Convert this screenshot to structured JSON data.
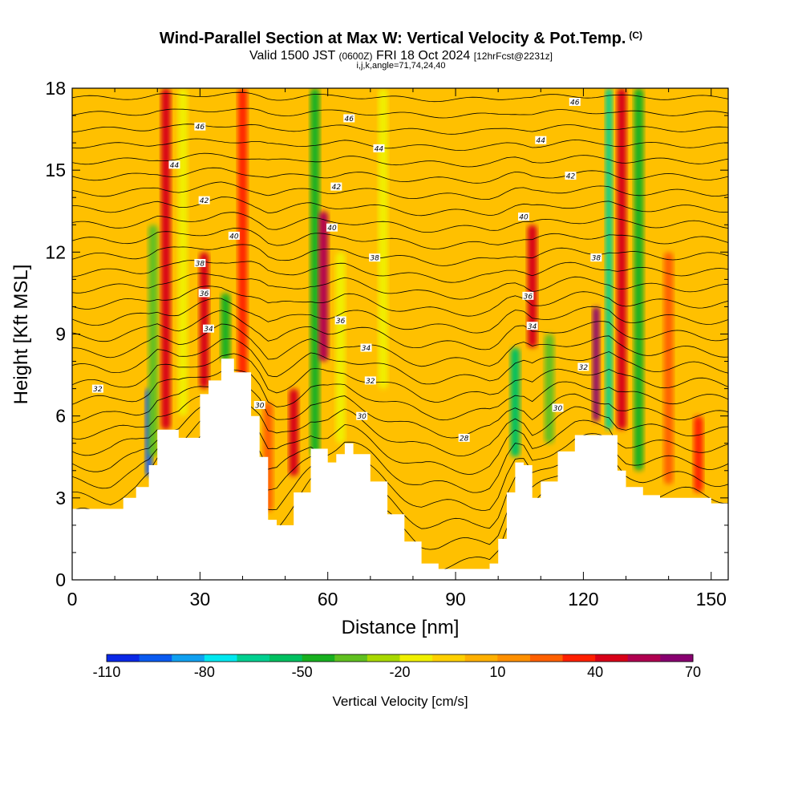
{
  "header": {
    "title": "Wind-Parallel Section at Max W: Vertical Velocity & Pot.Temp.",
    "title_mark": "(C)",
    "valid_prefix": "Valid 1500 JST",
    "valid_utc": "(0600Z)",
    "valid_date": "FRI 18 Oct 2024",
    "forecast": "[12hrFcst@2231z]",
    "params": "i,j,k,angle=71,74,24,40"
  },
  "colorbar": {
    "title": "Vertical Velocity [cm/s]",
    "tick_labels": [
      "-110",
      "-80",
      "-50",
      "-20",
      "10",
      "40",
      "70"
    ],
    "tick_values": [
      -110,
      -80,
      -50,
      -20,
      10,
      40,
      70
    ],
    "levels": [
      -110,
      -100,
      -90,
      -80,
      -70,
      -60,
      -50,
      -40,
      -30,
      -20,
      -10,
      0,
      10,
      20,
      30,
      40,
      50,
      60,
      70
    ],
    "colors": [
      "#0a28e6",
      "#0a5af0",
      "#10a0f0",
      "#00e8f0",
      "#00d090",
      "#00c060",
      "#18b020",
      "#60c020",
      "#a8d800",
      "#f0f000",
      "#ffd000",
      "#ffb000",
      "#ff9000",
      "#ff6000",
      "#ff2000",
      "#d80018",
      "#b00050",
      "#880070"
    ]
  },
  "chart_data": {
    "type": "heatmap",
    "title": "Wind-Parallel Section at Max W: Vertical Velocity & Pot.Temp.",
    "xlabel": "Distance [nm]",
    "ylabel": "Height [Kft MSL]",
    "xlim": [
      0,
      154
    ],
    "ylim": [
      0,
      18
    ],
    "x_ticks": [
      0,
      30,
      60,
      90,
      120,
      150
    ],
    "y_ticks": [
      0,
      3,
      6,
      9,
      12,
      15,
      18
    ],
    "x_tick_labels": [
      "0",
      "30",
      "60",
      "90",
      "120",
      "150"
    ],
    "y_tick_labels": [
      "0",
      "3",
      "6",
      "9",
      "12",
      "15",
      "18"
    ],
    "terrain": {
      "x": [
        0,
        3,
        9,
        12,
        15,
        18,
        20,
        25,
        30,
        32,
        35,
        38,
        42,
        44,
        46,
        48,
        52,
        56,
        60,
        62,
        64,
        66,
        70,
        74,
        78,
        82,
        86,
        90,
        94,
        98,
        100,
        102,
        104,
        106,
        108,
        110,
        114,
        118,
        122,
        126,
        128,
        130,
        134,
        138,
        142,
        146,
        150,
        154
      ],
      "height_kft": [
        2.6,
        2.6,
        2.6,
        3.0,
        3.4,
        4.2,
        5.5,
        5.2,
        6.8,
        7.3,
        8.1,
        7.6,
        6.0,
        4.5,
        2.2,
        2.0,
        3.2,
        4.8,
        4.3,
        4.6,
        5.0,
        4.6,
        3.6,
        2.4,
        1.4,
        0.6,
        0.4,
        0.4,
        0.4,
        0.6,
        1.5,
        3.2,
        4.3,
        4.2,
        3.0,
        3.6,
        4.7,
        5.3,
        5.3,
        5.3,
        4.0,
        3.4,
        3.1,
        3.0,
        3.0,
        3.0,
        2.8,
        2.7
      ]
    },
    "vertical_velocity_bands": [
      {
        "x": 18,
        "z_range": [
          3.8,
          7.0
        ],
        "w": -100
      },
      {
        "x": 19,
        "z_range": [
          4.5,
          13.0
        ],
        "w": -35
      },
      {
        "x": 22,
        "z_range": [
          5.5,
          18.0
        ],
        "w": 40
      },
      {
        "x": 26,
        "z_range": [
          6.0,
          18.0
        ],
        "w": -20
      },
      {
        "x": 31,
        "z_range": [
          7.0,
          12.0
        ],
        "w": 40
      },
      {
        "x": 36,
        "z_range": [
          8.0,
          10.5
        ],
        "w": -45
      },
      {
        "x": 40,
        "z_range": [
          7.0,
          18.0
        ],
        "w": 35
      },
      {
        "x": 46,
        "z_range": [
          2.5,
          6.5
        ],
        "w": 25
      },
      {
        "x": 52,
        "z_range": [
          3.8,
          7.0
        ],
        "w": 45
      },
      {
        "x": 57,
        "z_range": [
          4.5,
          18.0
        ],
        "w": -50
      },
      {
        "x": 59,
        "z_range": [
          8.0,
          13.5
        ],
        "w": 50
      },
      {
        "x": 63,
        "z_range": [
          5.0,
          12.0
        ],
        "w": -15
      },
      {
        "x": 73,
        "z_range": [
          7.0,
          18.0
        ],
        "w": -15
      },
      {
        "x": 104,
        "z_range": [
          4.5,
          8.5
        ],
        "w": -55
      },
      {
        "x": 108,
        "z_range": [
          8.5,
          13.0
        ],
        "w": 45
      },
      {
        "x": 112,
        "z_range": [
          5.0,
          9.0
        ],
        "w": -35
      },
      {
        "x": 123,
        "z_range": [
          5.8,
          10.0
        ],
        "w": 65
      },
      {
        "x": 126,
        "z_range": [
          5.5,
          18.0
        ],
        "w": -70
      },
      {
        "x": 129,
        "z_range": [
          5.5,
          18.0
        ],
        "w": 40
      },
      {
        "x": 133,
        "z_range": [
          4.0,
          18.0
        ],
        "w": -50
      },
      {
        "x": 140,
        "z_range": [
          3.5,
          12.0
        ],
        "w": 25
      },
      {
        "x": 147,
        "z_range": [
          3.2,
          6.0
        ],
        "w": 35
      }
    ],
    "theta_contour_labels": [
      {
        "x": 6,
        "z": 7.0,
        "text": "32"
      },
      {
        "x": 30,
        "z": 16.6,
        "text": "46"
      },
      {
        "x": 24,
        "z": 15.2,
        "text": "44"
      },
      {
        "x": 31,
        "z": 13.9,
        "text": "42"
      },
      {
        "x": 38,
        "z": 12.6,
        "text": "40"
      },
      {
        "x": 30,
        "z": 11.6,
        "text": "38"
      },
      {
        "x": 31,
        "z": 10.5,
        "text": "36"
      },
      {
        "x": 32,
        "z": 9.2,
        "text": "34"
      },
      {
        "x": 44,
        "z": 6.4,
        "text": "30"
      },
      {
        "x": 65,
        "z": 16.9,
        "text": "46"
      },
      {
        "x": 72,
        "z": 15.8,
        "text": "44"
      },
      {
        "x": 62,
        "z": 14.4,
        "text": "42"
      },
      {
        "x": 61,
        "z": 12.9,
        "text": "40"
      },
      {
        "x": 71,
        "z": 11.8,
        "text": "38"
      },
      {
        "x": 63,
        "z": 9.5,
        "text": "36"
      },
      {
        "x": 69,
        "z": 8.5,
        "text": "34"
      },
      {
        "x": 70,
        "z": 7.3,
        "text": "32"
      },
      {
        "x": 68,
        "z": 6.0,
        "text": "30"
      },
      {
        "x": 92,
        "z": 5.2,
        "text": "28"
      },
      {
        "x": 118,
        "z": 17.5,
        "text": "46"
      },
      {
        "x": 110,
        "z": 16.1,
        "text": "44"
      },
      {
        "x": 117,
        "z": 14.8,
        "text": "42"
      },
      {
        "x": 106,
        "z": 13.3,
        "text": "40"
      },
      {
        "x": 123,
        "z": 11.8,
        "text": "38"
      },
      {
        "x": 107,
        "z": 10.4,
        "text": "36"
      },
      {
        "x": 108,
        "z": 9.3,
        "text": "34"
      },
      {
        "x": 120,
        "z": 7.8,
        "text": "32"
      },
      {
        "x": 114,
        "z": 6.3,
        "text": "30"
      }
    ]
  }
}
